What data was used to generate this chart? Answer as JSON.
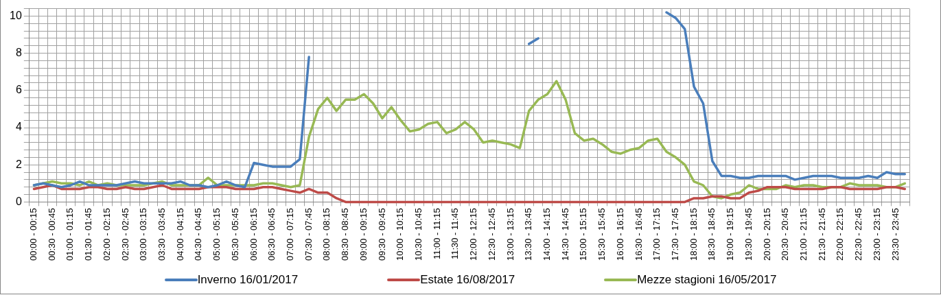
{
  "chart_data": {
    "type": "line",
    "categories": [
      "00:00 - 00:15",
      null,
      "00:30 - 00:45",
      null,
      "01:00 - 01:15",
      null,
      "01:30 - 01:45",
      null,
      "02:00 - 02:15",
      null,
      "02:30 - 02:45",
      null,
      "03:00 - 03:15",
      null,
      "03:30 - 03:45",
      null,
      "04:00 - 04:15",
      null,
      "04:30 - 04:45",
      null,
      "05:00 - 05:15",
      null,
      "05:30 - 05:45",
      null,
      "06:00 - 06:15",
      null,
      "06:30 - 06:45",
      null,
      "07:00 - 07:15",
      null,
      "07:30 - 07:45",
      null,
      "08:00 - 08:15",
      null,
      "08:30 - 08:45",
      null,
      "09:00 - 09:15",
      null,
      "09:30 - 09:45",
      null,
      "10:00 - 10:15",
      null,
      "10:30 - 10:45",
      null,
      "11:00 - 11:15",
      null,
      "11:30 - 11:45",
      null,
      "12:00 - 12:15",
      null,
      "12:30 - 12:45",
      null,
      "13:00 - 13:15",
      null,
      "13:30 - 13:45",
      null,
      "14:00 - 14:15",
      null,
      "14:30 - 14:45",
      null,
      "15:00 - 15:15",
      null,
      "15:30 - 15:45",
      null,
      "16:00 - 16:15",
      null,
      "16:30 - 16:45",
      null,
      "17:00 - 17:15",
      null,
      "17:30 - 17:45",
      null,
      "18:00 - 18:15",
      null,
      "18:30 - 18:45",
      null,
      "19:00 - 19:15",
      null,
      "19:30 - 19:45",
      null,
      "20:00 - 20:15",
      null,
      "20:30 - 20:45",
      null,
      "21:00 - 21:15",
      null,
      "21:30 - 21:45",
      null,
      "22:00 - 22:15",
      null,
      "22:30 - 22:45",
      null,
      "23:00 - 23:15",
      null,
      "23:30 - 23:45",
      null
    ],
    "series": [
      {
        "name": "Inverno 16/01/2017",
        "color": "#4a7ebb",
        "values": [
          0.9,
          1.0,
          0.9,
          0.8,
          0.9,
          1.1,
          0.9,
          0.9,
          0.9,
          0.9,
          1.0,
          1.1,
          1.0,
          1.0,
          1.0,
          1.0,
          1.1,
          0.9,
          0.9,
          0.8,
          0.9,
          1.1,
          0.9,
          0.8,
          2.1,
          2.0,
          1.9,
          1.9,
          1.9,
          2.3,
          7.8,
          null,
          null,
          null,
          null,
          null,
          null,
          null,
          null,
          null,
          null,
          null,
          null,
          null,
          null,
          null,
          null,
          null,
          null,
          null,
          null,
          null,
          null,
          null,
          8.5,
          8.8,
          null,
          null,
          null,
          null,
          null,
          null,
          null,
          null,
          null,
          null,
          null,
          null,
          null,
          10.2,
          9.9,
          9.3,
          6.2,
          5.3,
          2.2,
          1.4,
          1.4,
          1.3,
          1.3,
          1.4,
          1.4,
          1.4,
          1.4,
          1.2,
          1.3,
          1.4,
          1.4,
          1.4,
          1.3,
          1.3,
          1.3,
          1.4,
          1.3,
          1.6,
          1.5,
          1.5
        ]
      },
      {
        "name": "Estate 16/08/2017",
        "color": "#be4b48",
        "values": [
          0.7,
          0.8,
          0.9,
          0.7,
          0.7,
          0.7,
          0.8,
          0.8,
          0.7,
          0.7,
          0.8,
          0.7,
          0.7,
          0.8,
          0.9,
          0.7,
          0.7,
          0.7,
          0.7,
          0.8,
          0.8,
          0.8,
          0.7,
          0.7,
          0.7,
          0.8,
          0.8,
          0.7,
          0.6,
          0.5,
          0.7,
          0.5,
          0.5,
          0.2,
          0,
          0,
          0,
          0,
          0,
          0,
          0,
          0,
          0,
          0,
          0,
          0,
          0,
          0,
          0,
          0,
          0,
          0,
          0,
          0,
          0,
          0,
          0,
          0,
          0,
          0,
          0,
          0,
          0,
          0,
          0,
          0,
          0,
          0,
          0,
          0,
          0,
          0,
          0.2,
          0.2,
          0.3,
          0.3,
          0.2,
          0.2,
          0.5,
          0.6,
          0.8,
          0.8,
          0.8,
          0.7,
          0.7,
          0.7,
          0.7,
          0.8,
          0.8,
          0.7,
          0.7,
          0.7,
          0.7,
          0.8,
          0.8,
          0.7
        ]
      },
      {
        "name": "Mezze stagioni 16/05/2017",
        "color": "#98b954",
        "values": [
          0.9,
          1.0,
          1.1,
          1.0,
          1.0,
          0.9,
          1.1,
          0.9,
          1.0,
          0.9,
          0.9,
          0.9,
          0.9,
          1.0,
          1.1,
          0.9,
          0.9,
          0.9,
          0.9,
          1.3,
          0.9,
          0.9,
          0.9,
          0.9,
          0.9,
          1.0,
          1.0,
          0.9,
          0.8,
          0.9,
          3.5,
          5.0,
          5.6,
          4.9,
          5.5,
          5.5,
          5.8,
          5.3,
          4.5,
          5.1,
          4.4,
          3.8,
          3.9,
          4.2,
          4.3,
          3.7,
          3.9,
          4.3,
          3.9,
          3.2,
          3.3,
          3.2,
          3.1,
          2.9,
          4.9,
          5.5,
          5.8,
          6.5,
          5.5,
          3.7,
          3.3,
          3.4,
          3.1,
          2.7,
          2.6,
          2.8,
          2.9,
          3.3,
          3.4,
          2.7,
          2.4,
          2.0,
          1.1,
          0.9,
          0.3,
          0.2,
          0.4,
          0.5,
          0.9,
          0.7,
          0.7,
          0.7,
          0.9,
          0.8,
          0.9,
          0.9,
          0.8,
          0.8,
          0.8,
          1.0,
          0.9,
          0.9,
          0.9,
          0.8,
          0.8,
          1.0
        ]
      }
    ],
    "ylim": [
      0,
      10.4
    ],
    "yticks": [
      0,
      {
        "value": 0.4,
        "label": null
      },
      {
        "value": 0.8,
        "label": null
      },
      {
        "value": 1.2,
        "label": null
      },
      {
        "value": 1.6,
        "label": null
      },
      2,
      {
        "value": 2.4,
        "label": null
      },
      {
        "value": 2.8,
        "label": null
      },
      {
        "value": 3.2,
        "label": null
      },
      {
        "value": 3.6,
        "label": null
      },
      4,
      {
        "value": 4.4,
        "label": null
      },
      {
        "value": 4.8,
        "label": null
      },
      {
        "value": 5.2,
        "label": null
      },
      {
        "value": 5.6,
        "label": null
      },
      6,
      {
        "value": 6.4,
        "label": null
      },
      {
        "value": 6.8,
        "label": null
      },
      {
        "value": 7.2,
        "label": null
      },
      {
        "value": 7.6,
        "label": null
      },
      8,
      {
        "value": 8.4,
        "label": null
      },
      {
        "value": 8.8,
        "label": null
      },
      {
        "value": 9.2,
        "label": null
      },
      {
        "value": 9.6,
        "label": null
      },
      10,
      {
        "value": 10.4,
        "label": null
      }
    ],
    "grid": true,
    "legend": "bottom",
    "marker": "none",
    "line_style": "solid"
  }
}
